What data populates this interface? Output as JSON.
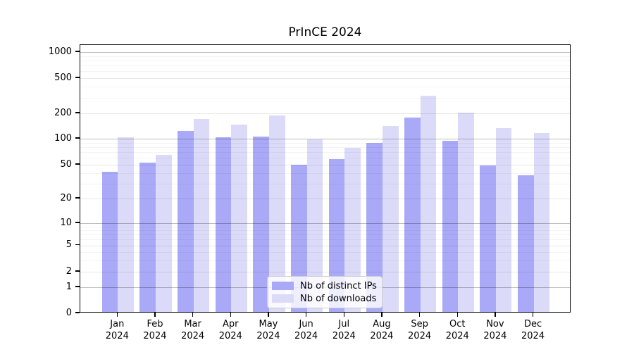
{
  "title": "PrInCE 2024",
  "chart_data": {
    "type": "bar",
    "title": "PrInCE 2024",
    "categories": [
      "Jan",
      "Feb",
      "Mar",
      "Apr",
      "May",
      "Jun",
      "Jul",
      "Aug",
      "Sep",
      "Oct",
      "Nov",
      "Dec"
    ],
    "x_year_label": "2024",
    "series": [
      {
        "name": "Nb of distinct IPs",
        "color": "#a9a9f7",
        "values": [
          40,
          51,
          118,
          100,
          101,
          48,
          56,
          86,
          171,
          91,
          47,
          36
        ]
      },
      {
        "name": "Nb of downloads",
        "color": "#dbdbf9",
        "values": [
          100,
          63,
          165,
          142,
          183,
          94,
          76,
          136,
          305,
          197,
          128,
          112
        ]
      }
    ],
    "yscale": "symlog",
    "yticks": [
      0,
      1,
      2,
      5,
      10,
      20,
      50,
      100,
      200,
      500,
      1000
    ],
    "ylim": [
      0,
      1200
    ],
    "grid": "horizontal major and minor log gridlines",
    "legend_position": "inside-bottom-center"
  }
}
